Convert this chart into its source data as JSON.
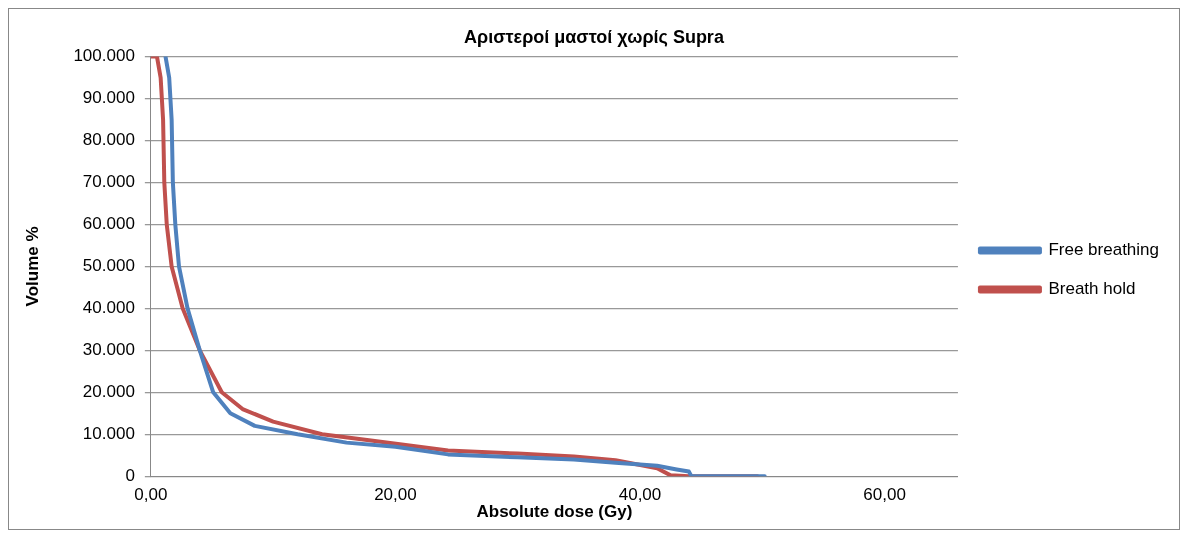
{
  "chart_data": {
    "type": "line",
    "title": "Αριστεροί μαστοί χωρίς Supra",
    "xlabel": "Absolute dose (Gy)",
    "ylabel": "Volume %",
    "xlim": [
      0,
      66
    ],
    "xticks": [
      {
        "value": 0,
        "label": "0,00"
      },
      {
        "value": 20,
        "label": "20,00"
      },
      {
        "value": 40,
        "label": "40,00"
      },
      {
        "value": 60,
        "label": "60,00"
      }
    ],
    "ylim": [
      0,
      100000
    ],
    "yticks": [
      0,
      {
        "value": 10000,
        "label": "10.000"
      },
      {
        "value": 20000,
        "label": "20.000"
      },
      {
        "value": 30000,
        "label": "30.000"
      },
      {
        "value": 40000,
        "label": "40.000"
      },
      {
        "value": 50000,
        "label": "50.000"
      },
      {
        "value": 60000,
        "label": "60.000"
      },
      {
        "value": 70000,
        "label": "70.000"
      },
      {
        "value": 80000,
        "label": "80.000"
      },
      {
        "value": 90000,
        "label": "90.000"
      },
      {
        "value": 100000,
        "label": "100.000"
      }
    ],
    "grid": "y",
    "legend": "right",
    "marker": "none",
    "line_style": "solid",
    "series": [
      {
        "name": "Free breathing",
        "color": "#4f81bd",
        "x": [
          1.2,
          1.5,
          1.7,
          1.8,
          2.0,
          2.3,
          3.0,
          4.0,
          5.1,
          6.5,
          8.5,
          12,
          16,
          20,
          24.3,
          30,
          34.6,
          38,
          41.4,
          43,
          44,
          44.2,
          46,
          50.2
        ],
        "values": [
          100000,
          95000,
          85000,
          70000,
          60000,
          50000,
          40000,
          30000,
          20000,
          15000,
          12000,
          10000,
          8000,
          7000,
          5200,
          4500,
          4000,
          3200,
          2500,
          1600,
          1100,
          0,
          0,
          0
        ]
      },
      {
        "name": "Breath hold",
        "color": "#c0504d",
        "x": [
          0,
          0.5,
          0.8,
          1.0,
          1.1,
          1.3,
          1.7,
          2.6,
          4.0,
          5.8,
          7.5,
          10,
          14,
          18,
          24.3,
          30,
          34.6,
          38,
          41.4,
          42.5,
          44,
          49.6
        ],
        "values": [
          100000,
          100000,
          95000,
          85000,
          70000,
          60000,
          50000,
          40000,
          30000,
          20000,
          16000,
          13000,
          10000,
          8500,
          6100,
          5400,
          4700,
          3800,
          1900,
          200,
          0,
          0
        ]
      }
    ]
  }
}
